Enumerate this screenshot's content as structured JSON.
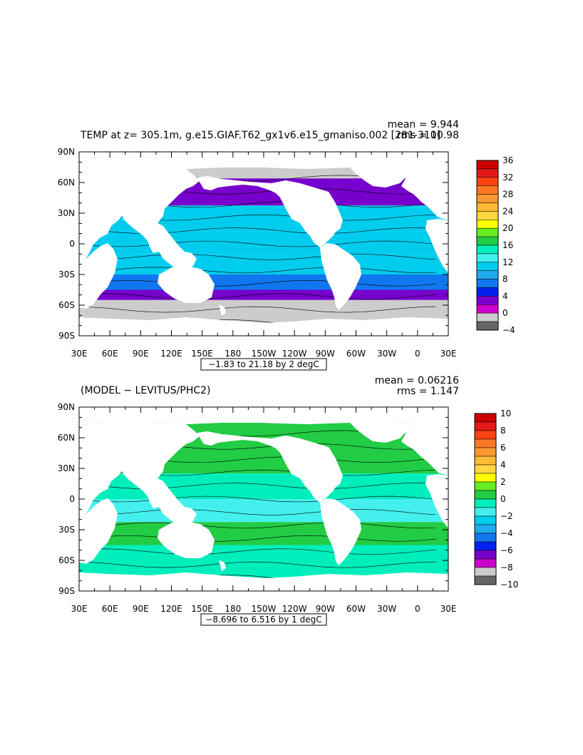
{
  "chart_data": [
    {
      "type": "heatmap",
      "title": "TEMP at z= 305.1m, g.e15.GIAF.T62_gx1v6.e15_gmaniso.002 [281-310]",
      "stats": {
        "mean": "mean = 9.944",
        "rms": "rms = 10.98"
      },
      "range_label": "−1.83 to 21.18 by 2 degC",
      "x_ticks": [
        "30E",
        "60E",
        "90E",
        "120E",
        "150E",
        "180",
        "150W",
        "120W",
        "90W",
        "60W",
        "30W",
        "0",
        "30E"
      ],
      "y_ticks": [
        "90N",
        "60N",
        "30N",
        "0",
        "30S",
        "60S",
        "90S"
      ],
      "xlim": [
        30,
        390
      ],
      "ylim": [
        -90,
        90
      ],
      "grid": false,
      "colorbar": {
        "labels": [
          "36",
          "32",
          "28",
          "24",
          "20",
          "16",
          "12",
          "8",
          "4",
          "0",
          "−4"
        ],
        "colors": [
          "#cc0000",
          "#e21a1a",
          "#ff4411",
          "#ff7722",
          "#ff9933",
          "#ffbb33",
          "#ffd740",
          "#ffff00",
          "#66ee22",
          "#22cc44",
          "#00eebb",
          "#44f0ee",
          "#00ccee",
          "#22aaee",
          "#1177ee",
          "#0022ee",
          "#7700cc",
          "#cc00cc",
          "#cccccc",
          "#666666"
        ]
      },
      "regions": [
        {
          "lat": 78,
          "value": -1.5
        },
        {
          "lat": 50,
          "value": 4
        },
        {
          "lat": 25,
          "value": 12
        },
        {
          "lat": 0,
          "value": 11
        },
        {
          "lat": -20,
          "value": 12
        },
        {
          "lat": -40,
          "value": 8
        },
        {
          "lat": -50,
          "value": 4
        },
        {
          "lat": -60,
          "value": 0
        }
      ]
    },
    {
      "type": "heatmap",
      "title": "(MODEL − LEVITUS/PHC2)",
      "stats": {
        "mean": "mean = 0.06216",
        "rms": "rms = 1.147"
      },
      "range_label": "−8.696 to 6.516 by 1 degC",
      "x_ticks": [
        "30E",
        "60E",
        "90E",
        "120E",
        "150E",
        "180",
        "150W",
        "120W",
        "90W",
        "60W",
        "30W",
        "0",
        "30E"
      ],
      "y_ticks": [
        "90N",
        "60N",
        "30N",
        "0",
        "30S",
        "60S",
        "90S"
      ],
      "xlim": [
        30,
        390
      ],
      "ylim": [
        -90,
        90
      ],
      "grid": false,
      "colorbar": {
        "labels": [
          "10",
          "8",
          "6",
          "4",
          "2",
          "0",
          "−2",
          "−4",
          "−6",
          "−8",
          "−10"
        ],
        "colors": [
          "#cc0000",
          "#e21a1a",
          "#ff4411",
          "#ff7722",
          "#ff9933",
          "#ffbb33",
          "#ffd740",
          "#ffff00",
          "#66ee22",
          "#22cc44",
          "#00eebb",
          "#44f0ee",
          "#00ccee",
          "#22aaee",
          "#1177ee",
          "#0022ee",
          "#7700cc",
          "#cc00cc",
          "#cccccc",
          "#666666"
        ]
      },
      "regions": [
        {
          "lat": 80,
          "value": 0.5
        },
        {
          "lat": 40,
          "value": 0.5
        },
        {
          "lat": 10,
          "value": -0.5
        },
        {
          "lat": -10,
          "value": -1
        },
        {
          "lat": -35,
          "value": 0.5
        },
        {
          "lat": -55,
          "value": -0.5
        }
      ]
    }
  ]
}
